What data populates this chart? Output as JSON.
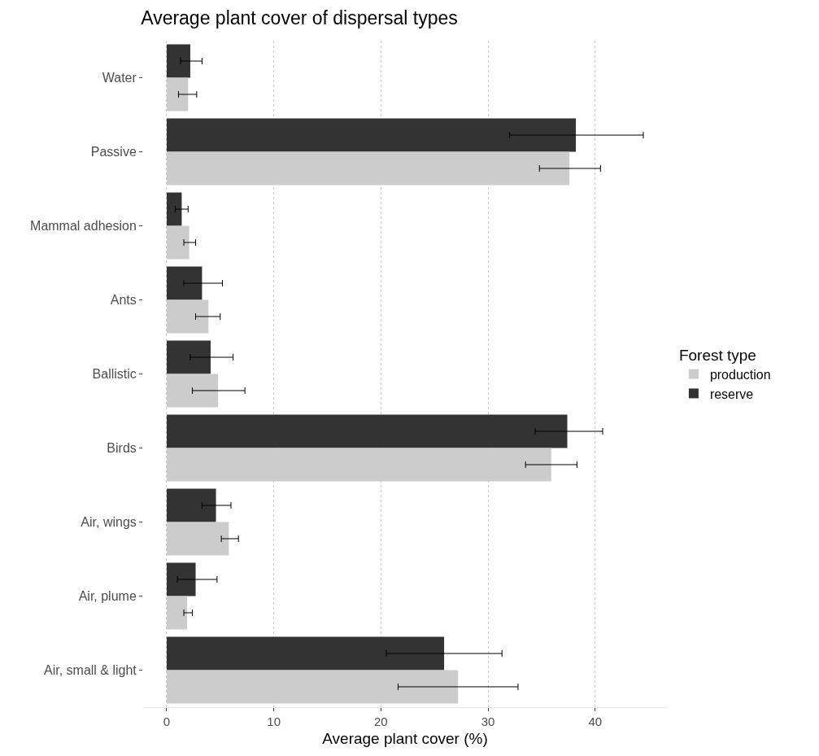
{
  "chart_data": {
    "type": "bar",
    "orientation": "horizontal",
    "title": "Average plant cover of dispersal types",
    "xlabel": "Average plant cover (%)",
    "legend_title": "Forest type",
    "categories": [
      "Water",
      "Passive",
      "Mammal adhesion",
      "Ants",
      "Ballistic",
      "Birds",
      "Air, wings",
      "Air, plume",
      "Air, small & light"
    ],
    "series": [
      {
        "name": "production",
        "color": "#cccccc",
        "values": [
          2.0,
          37.6,
          2.1,
          3.9,
          4.8,
          35.9,
          5.8,
          1.9,
          27.2
        ],
        "errors": [
          [
            1.1,
            2.8
          ],
          [
            34.8,
            40.5
          ],
          [
            1.6,
            2.7
          ],
          [
            2.7,
            5.0
          ],
          [
            2.4,
            7.3
          ],
          [
            33.5,
            38.3
          ],
          [
            5.1,
            6.7
          ],
          [
            1.6,
            2.4
          ],
          [
            21.6,
            32.8
          ]
        ]
      },
      {
        "name": "reserve",
        "color": "#333333",
        "values": [
          2.2,
          38.2,
          1.4,
          3.3,
          4.1,
          37.4,
          4.6,
          2.7,
          25.9
        ],
        "errors": [
          [
            1.3,
            3.3
          ],
          [
            32.0,
            44.5
          ],
          [
            0.8,
            2.0
          ],
          [
            1.6,
            5.2
          ],
          [
            2.2,
            6.2
          ],
          [
            34.4,
            40.7
          ],
          [
            3.3,
            6.0
          ],
          [
            1.0,
            4.7
          ],
          [
            20.5,
            31.3
          ]
        ]
      }
    ],
    "xlim": [
      -2.2,
      46.7
    ],
    "xticks": [
      0,
      10,
      20,
      30,
      40
    ],
    "grid": "x",
    "legend": "right"
  }
}
